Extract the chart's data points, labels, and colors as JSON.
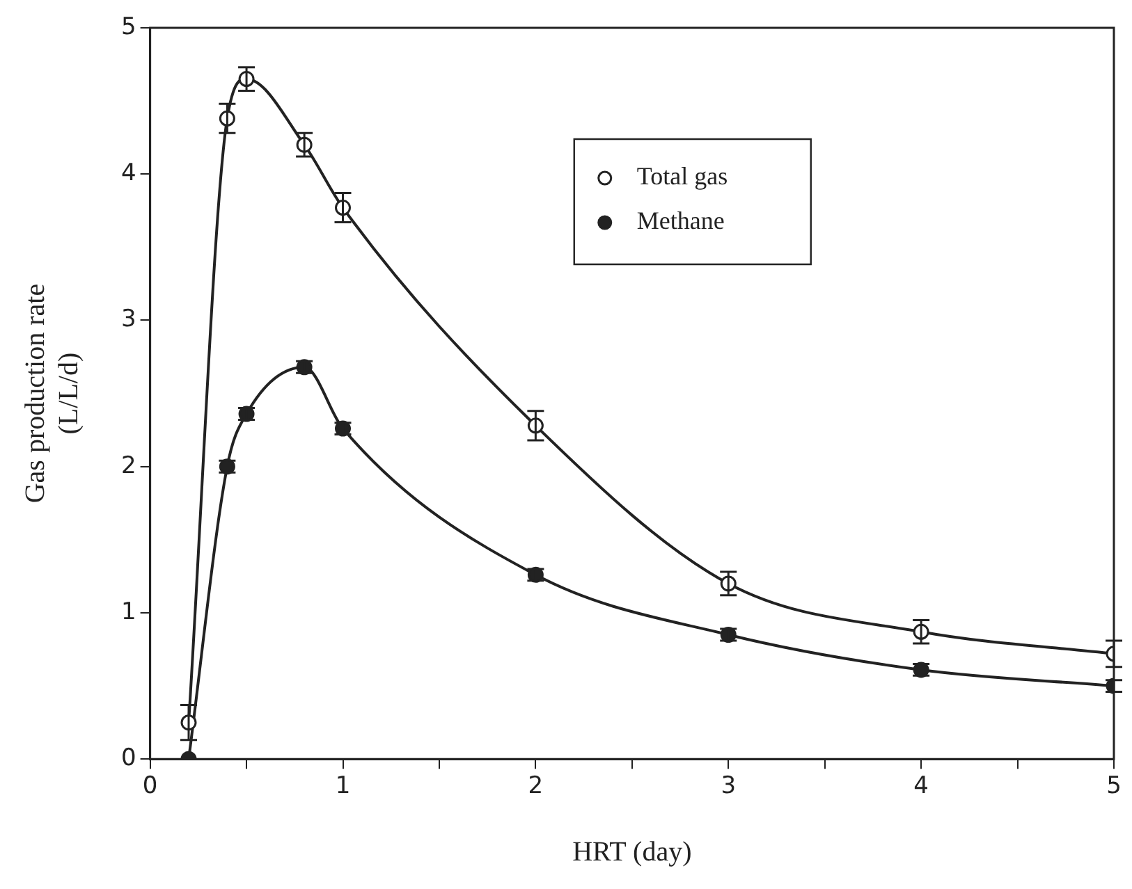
{
  "chart_data": {
    "type": "line",
    "xlabel": "HRT (day)",
    "ylabel": "Gas production rate\n(L/L/d)",
    "xlim": [
      0,
      5
    ],
    "xticks": [
      0,
      {
        "value": 0.5,
        "label": null
      },
      1,
      {
        "value": 1.5,
        "label": null
      },
      2,
      {
        "value": 2.5,
        "label": null
      },
      3,
      {
        "value": 3.5,
        "label": null
      },
      4,
      {
        "value": 4.5,
        "label": null
      },
      5
    ],
    "ylim": [
      0,
      5
    ],
    "yticks": [
      0,
      1,
      2,
      3,
      4,
      5
    ],
    "x": [
      0.2,
      0.4,
      0.5,
      0.8,
      1,
      2,
      3,
      4,
      5
    ],
    "series": [
      {
        "name": "Total gas",
        "color": "#222222",
        "values": [
          0.25,
          4.38,
          4.65,
          4.2,
          3.77,
          2.28,
          1.2,
          0.87,
          0.72
        ],
        "errors": [
          0.12,
          0.1,
          0.08,
          0.08,
          0.1,
          0.1,
          0.08,
          0.08,
          0.09
        ]
      },
      {
        "name": "Methane",
        "color": "#222222",
        "values": [
          0,
          2.0,
          2.36,
          2.68,
          2.26,
          1.26,
          0.85,
          0.61,
          0.5
        ],
        "errors": [
          null,
          0.04,
          0.04,
          0.04,
          0.04,
          0.04,
          0.04,
          0.04,
          0.04
        ]
      }
    ],
    "marker": "circle",
    "line_style": "solid",
    "grid": false,
    "legend": "top right"
  }
}
